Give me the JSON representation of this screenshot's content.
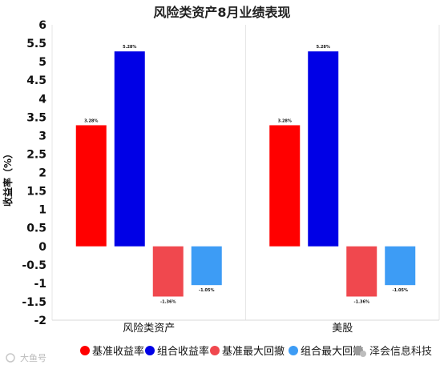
{
  "chart_data": {
    "type": "bar",
    "title": "风险类资产8月业绩表现",
    "ylabel": "收益率（%）",
    "xlabel": "",
    "ylim": [
      -2,
      6
    ],
    "yticks": [
      "6",
      "5.5",
      "5",
      "4.5",
      "4",
      "3.5",
      "3",
      "2.5",
      "2",
      "1.5",
      "1",
      "0.5",
      "0",
      "-0.5",
      "-1",
      "-1.5",
      "-2"
    ],
    "categories": [
      "风险类资产",
      "美股"
    ],
    "series": [
      {
        "name": "基准收益率",
        "color": "#ff0000",
        "values": [
          3.28,
          3.28
        ],
        "labels": [
          "3.28%",
          "3.28%"
        ]
      },
      {
        "name": "组合收益率",
        "color": "#0000e6",
        "values": [
          5.28,
          5.28
        ],
        "labels": [
          "5.28%",
          "5.28%"
        ]
      },
      {
        "name": "基准最大回撤",
        "color": "#f0484e",
        "values": [
          -1.36,
          -1.36
        ],
        "labels": [
          "-1.36%",
          "-1.36%"
        ]
      },
      {
        "name": "组合最大回撤",
        "color": "#3d9cf5",
        "values": [
          -1.05,
          -1.05
        ],
        "labels": [
          "-1.05%",
          "-1.05%"
        ]
      }
    ],
    "legend_position": "bottom",
    "grid": "vertical-only"
  },
  "watermarks": {
    "right": "泽会信息科技",
    "left": "大鱼号"
  }
}
